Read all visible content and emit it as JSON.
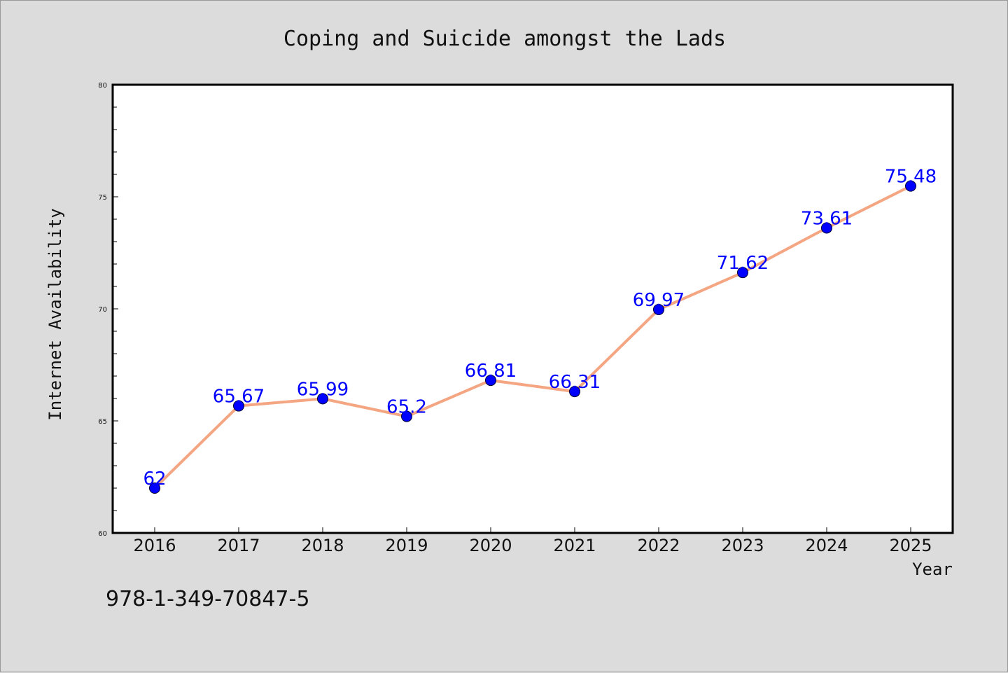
{
  "chart_data": {
    "type": "line",
    "title": "Coping and Suicide amongst the Lads",
    "xlabel": "Year",
    "ylabel": "Internet Availability",
    "categories": [
      "2016",
      "2017",
      "2018",
      "2019",
      "2020",
      "2021",
      "2022",
      "2023",
      "2024",
      "2025"
    ],
    "values": [
      62,
      65.67,
      65.99,
      65.2,
      66.81,
      66.31,
      69.97,
      71.62,
      73.61,
      75.48
    ],
    "data_labels": [
      "62",
      "65.67",
      "65.99",
      "65.2",
      "66.81",
      "66.31",
      "69.97",
      "71.62",
      "73.61",
      "75.48"
    ],
    "ylim": [
      60,
      80
    ],
    "yticks": [
      "60",
      "65",
      "70",
      "75",
      "80"
    ],
    "grid": false,
    "line_color": "#f4a582",
    "marker_color": "#0000ff"
  },
  "annotation": {
    "text": "978-1-349-70847-5"
  }
}
